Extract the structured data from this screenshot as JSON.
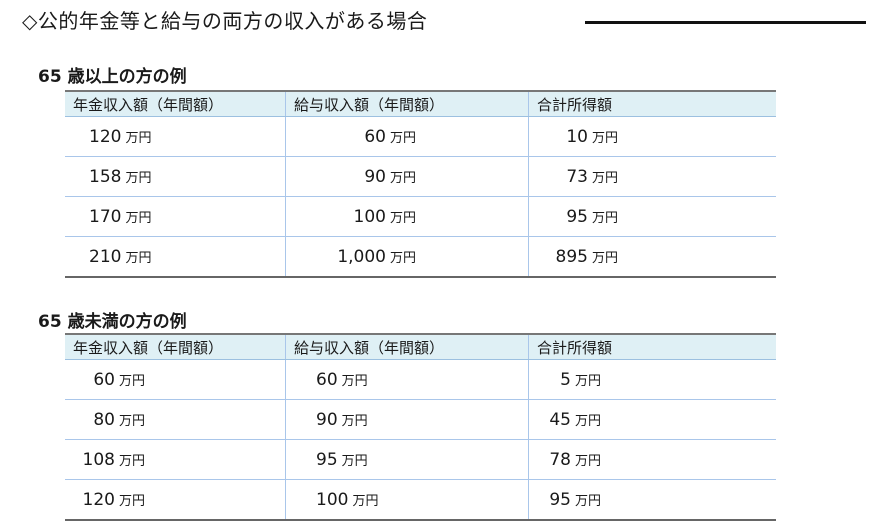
{
  "title": "◇公的年金等と給与の両方の収入がある場合",
  "headers": [
    "年金収入額（年間額）",
    "給与収入額（年間額）",
    "合計所得額"
  ],
  "unit": "万円",
  "sections": [
    {
      "heading": "65 歳以上の方の例",
      "rows": [
        [
          "120",
          "60",
          "10"
        ],
        [
          "158",
          "90",
          "73"
        ],
        [
          "170",
          "100",
          "95"
        ],
        [
          "210",
          "1,000",
          "895"
        ]
      ]
    },
    {
      "heading": "65 歳未満の方の例",
      "rows": [
        [
          "60",
          "60",
          "5"
        ],
        [
          "80",
          "90",
          "45"
        ],
        [
          "108",
          "95",
          "78"
        ],
        [
          "120",
          "100",
          "95"
        ]
      ]
    }
  ]
}
